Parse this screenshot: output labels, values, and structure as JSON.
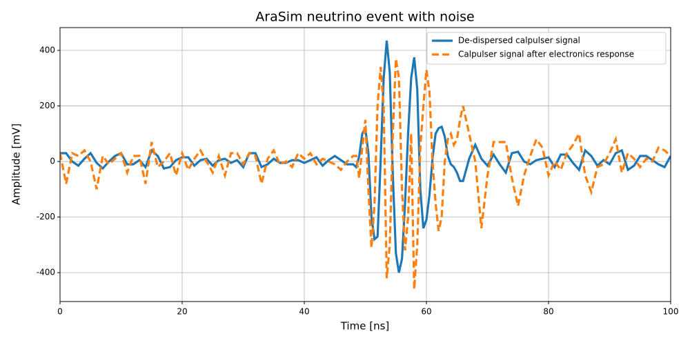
{
  "chart_data": {
    "type": "line",
    "title": "AraSim neutrino event with noise",
    "xlabel": "Time [ns]",
    "ylabel": "Amplitude [mV]",
    "x": [
      0,
      1,
      2,
      3,
      4,
      5,
      6,
      7,
      8,
      9,
      10,
      11,
      12,
      13,
      14,
      15,
      16,
      17,
      18,
      19,
      20,
      21,
      22,
      23,
      24,
      25,
      26,
      27,
      28,
      29,
      30,
      31,
      32,
      33,
      34,
      35,
      36,
      37,
      38,
      39,
      40,
      41,
      42,
      43,
      44,
      45,
      46,
      47,
      48,
      48.5,
      49,
      49.5,
      50,
      50.5,
      51,
      51.5,
      52,
      52.5,
      53,
      53.5,
      54,
      54.5,
      55,
      55.5,
      56,
      56.5,
      57,
      57.5,
      58,
      58.5,
      59,
      59.5,
      60,
      60.5,
      61,
      61.5,
      62,
      62.5,
      63,
      63.5,
      64,
      64.5,
      65,
      65.5,
      66,
      67,
      68,
      69,
      70,
      71,
      72,
      73,
      74,
      75,
      76,
      77,
      78,
      79,
      80,
      81,
      82,
      83,
      84,
      85,
      86,
      87,
      88,
      89,
      90,
      91,
      92,
      93,
      94,
      95,
      96,
      97,
      98,
      99,
      100
    ],
    "series": [
      {
        "name": "De-dispersed calpulser signal",
        "color": "#1f77b4",
        "dashed": false,
        "values": [
          30,
          30,
          0,
          -15,
          10,
          30,
          -5,
          -25,
          0,
          20,
          30,
          -10,
          -10,
          5,
          -20,
          40,
          20,
          -25,
          -20,
          5,
          15,
          15,
          -15,
          5,
          10,
          -15,
          5,
          10,
          -5,
          5,
          -20,
          30,
          30,
          -20,
          -10,
          10,
          -5,
          -5,
          5,
          5,
          -5,
          5,
          15,
          -15,
          5,
          20,
          5,
          -10,
          -10,
          -20,
          20,
          100,
          120,
          30,
          -200,
          -280,
          -270,
          0,
          300,
          435,
          320,
          -50,
          -330,
          -400,
          -350,
          -150,
          100,
          300,
          375,
          260,
          -100,
          -240,
          -210,
          -120,
          10,
          100,
          120,
          125,
          90,
          20,
          -10,
          -20,
          -40,
          -70,
          -70,
          10,
          60,
          10,
          -15,
          25,
          -10,
          -40,
          30,
          35,
          0,
          -10,
          5,
          10,
          15,
          -20,
          25,
          25,
          -5,
          -30,
          40,
          20,
          -15,
          5,
          -10,
          30,
          40,
          -30,
          -15,
          20,
          20,
          5,
          -10,
          -20,
          20
        ]
      },
      {
        "name": "Calpulser signal after electronics response",
        "color": "#ff7f0e",
        "dashed": true,
        "values": [
          30,
          -80,
          30,
          20,
          40,
          0,
          -100,
          20,
          -10,
          10,
          30,
          -40,
          20,
          20,
          -80,
          70,
          -20,
          0,
          30,
          -50,
          30,
          -30,
          10,
          40,
          0,
          -40,
          20,
          -50,
          30,
          30,
          -10,
          30,
          20,
          -80,
          10,
          40,
          -10,
          0,
          -20,
          30,
          10,
          30,
          -10,
          10,
          0,
          -10,
          -30,
          0,
          20,
          20,
          -60,
          50,
          150,
          -100,
          -310,
          -150,
          200,
          340,
          200,
          -420,
          -300,
          100,
          370,
          300,
          -100,
          -320,
          -200,
          100,
          -460,
          -300,
          50,
          200,
          330,
          250,
          0,
          -150,
          -250,
          -200,
          0,
          80,
          100,
          60,
          80,
          150,
          200,
          100,
          0,
          -240,
          -50,
          70,
          70,
          70,
          -60,
          -160,
          -50,
          20,
          80,
          50,
          -50,
          0,
          -30,
          30,
          60,
          100,
          -50,
          -110,
          -20,
          -10,
          30,
          80,
          -40,
          30,
          10,
          -20,
          10,
          0,
          50,
          40,
          20
        ]
      }
    ],
    "xlim": [
      0,
      100
    ],
    "ylim": [
      -504,
      482
    ],
    "xticks": [
      0,
      20,
      40,
      60,
      80,
      100
    ],
    "yticks": [
      -400,
      -200,
      0,
      200,
      400
    ],
    "grid": true,
    "legend": "upper right"
  }
}
